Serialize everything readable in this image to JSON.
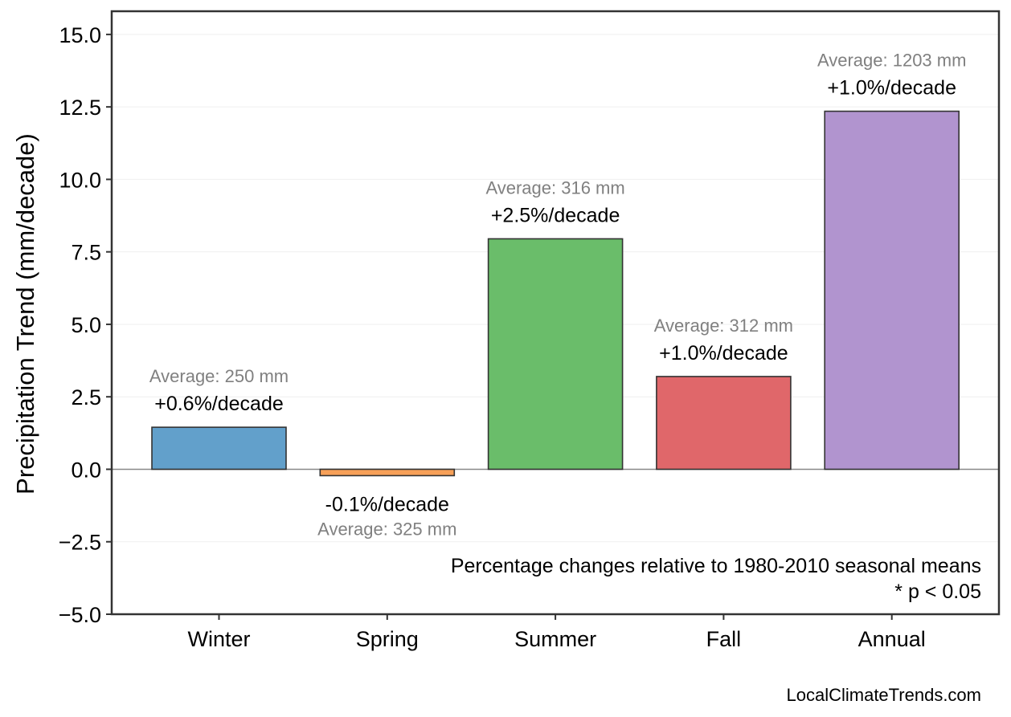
{
  "chart_data": {
    "type": "bar",
    "categories": [
      "Winter",
      "Spring",
      "Summer",
      "Fall",
      "Annual"
    ],
    "values": [
      1.45,
      -0.22,
      7.95,
      3.2,
      12.35
    ],
    "colors": [
      "#62a0cb",
      "#f7a058",
      "#6abd6a",
      "#e0676a",
      "#b194cf"
    ],
    "percent_labels": [
      "+0.6%/decade",
      "-0.1%/decade",
      "+2.5%/decade",
      "+1.0%/decade",
      "+1.0%/decade"
    ],
    "average_labels": [
      "Average: 250 mm",
      "Average: 325 mm",
      "Average: 316 mm",
      "Average: 312 mm",
      "Average: 1203 mm"
    ],
    "ylabel": "Precipitation Trend (mm/decade)",
    "xlabel": "",
    "ylim": [
      -5.0,
      15.8
    ],
    "yticks": [
      -5.0,
      -2.5,
      0.0,
      2.5,
      5.0,
      7.5,
      10.0,
      12.5,
      15.0
    ],
    "ytick_labels": [
      "−5.0",
      "−2.5",
      "0.0",
      "2.5",
      "5.0",
      "7.5",
      "10.0",
      "12.5",
      "15.0"
    ],
    "grid": true,
    "zero_line": true,
    "note_lines": [
      "Percentage changes relative to 1980-2010 seasonal means",
      "* p < 0.05"
    ],
    "credit": "LocalClimateTrends.com"
  }
}
